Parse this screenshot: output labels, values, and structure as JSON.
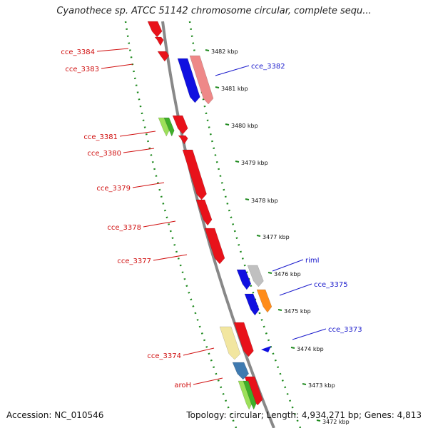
{
  "title": "Cyanothece sp. ATCC 51142 chromosome circular, complete sequ...",
  "footer": {
    "accession": "Accession: NC_010546",
    "summary": "Topology: circular; Length: 4,934,271 bp; Genes: 4,813"
  },
  "scale": {
    "ticks": [
      "3482 kbp",
      "3481 kbp",
      "3480 kbp",
      "3479 kbp",
      "3478 kbp",
      "3477 kbp",
      "3476 kbp",
      "3475 kbp",
      "3474 kbp",
      "3473 kbp",
      "3472 kbp"
    ]
  },
  "colors": {
    "forward_default": "#e8121a",
    "reverse_default": "#1010e0",
    "left_label": "#d01010",
    "right_label": "#1a1acc",
    "track_border": "#1f8a1f",
    "backbone": "#888888"
  },
  "genes_left": [
    {
      "label": "cce_3384",
      "color": "#e8121a"
    },
    {
      "label": "cce_3383",
      "color": "#e8121a"
    },
    {
      "label": "cce_3381",
      "color": "#e8121a"
    },
    {
      "label": "cce_3380",
      "color": "#e8121a"
    },
    {
      "label": "cce_3379",
      "color": "#e8121a"
    },
    {
      "label": "cce_3378",
      "color": "#e8121a"
    },
    {
      "label": "cce_3377",
      "color": "#e8121a"
    },
    {
      "label": "cce_3374",
      "color": "#e8121a"
    },
    {
      "label": "aroH",
      "color": "#e8121a"
    }
  ],
  "genes_right": [
    {
      "label": "cce_3382",
      "color": "#1010e0"
    },
    {
      "label": "rimI",
      "color": "#1010e0"
    },
    {
      "label": "cce_3375",
      "color": "#1010e0"
    },
    {
      "label": "cce_3373",
      "color": "#1010e0"
    }
  ]
}
